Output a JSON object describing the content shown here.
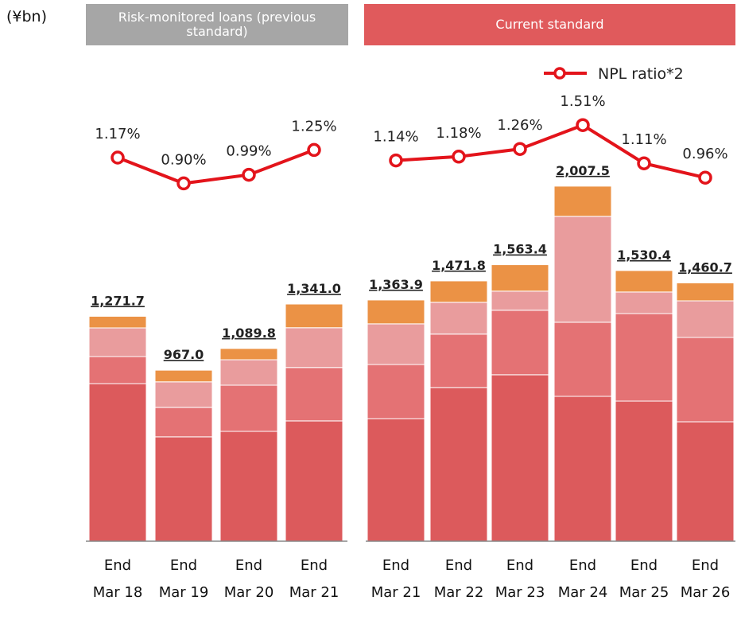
{
  "unit": "(¥bn)",
  "chart_data": [
    {
      "type": "bar",
      "title": "Risk-monitored loans (previous standard)",
      "categories": [
        "End\nMar 18",
        "End\nMar 19",
        "End\nMar 20",
        "End\nMar 21"
      ],
      "series": [
        {
          "color": "#dc5a5c",
          "values": [
            891,
            590,
            621,
            680
          ]
        },
        {
          "color": "#e47274",
          "values": [
            153,
            167,
            261,
            302
          ]
        },
        {
          "color": "#e99c9d",
          "values": [
            162,
            144,
            144,
            225
          ]
        },
        {
          "color": "#eb9245",
          "values": [
            65.7,
            66,
            63.8,
            134
          ]
        },
        {
          "type": "line",
          "color": "#e3141b",
          "values": [
            1.17,
            0.9,
            0.99,
            1.25
          ],
          "value_labels": [
            "1.17%",
            "0.90%",
            "0.99%",
            "1.25%"
          ]
        }
      ],
      "totals": [
        1271.7,
        967.0,
        1089.8,
        1341.0
      ],
      "totals_labels": [
        "1,271.7",
        "967.0",
        "1,089.8",
        "1,341.0"
      ]
    },
    {
      "type": "bar",
      "title": "Current standard",
      "categories": [
        "End\nMar 21",
        "End\nMar 22",
        "End\nMar 23",
        "End\nMar 24",
        "End\nMar 25",
        "End\nMar 26"
      ],
      "series": [
        {
          "color": "#dc5a5c",
          "values": [
            693,
            869,
            941,
            819,
            792,
            675
          ]
        },
        {
          "color": "#e47274",
          "values": [
            306,
            302,
            365,
            419,
            495,
            477
          ]
        },
        {
          "color": "#e99c9d",
          "values": [
            230,
            180,
            108,
            599,
            122,
            207
          ]
        },
        {
          "color": "#eb9245",
          "values": [
            134.9,
            120.8,
            149.4,
            170.5,
            121.4,
            101.7
          ]
        },
        {
          "type": "line",
          "name": "NPL ratio*2",
          "color": "#e3141b",
          "values": [
            1.14,
            1.18,
            1.26,
            1.51,
            1.11,
            0.96
          ],
          "value_labels": [
            "1.14%",
            "1.18%",
            "1.26%",
            "1.51%",
            "1.11%",
            "0.96%"
          ]
        }
      ],
      "totals": [
        1363.9,
        1471.8,
        1563.4,
        2007.5,
        1530.4,
        1460.7
      ],
      "totals_labels": [
        "1,363.9",
        "1,471.8",
        "1,563.4",
        "2,007.5",
        "1,530.4",
        "1,460.7"
      ]
    }
  ]
}
